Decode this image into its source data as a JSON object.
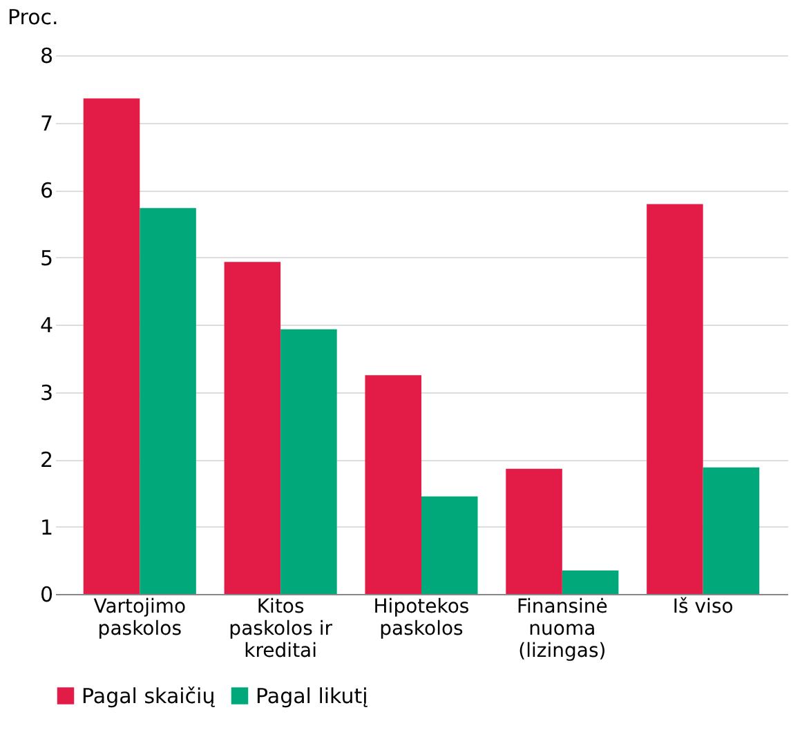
{
  "chart_data": {
    "type": "bar",
    "ylabel": "Proc.",
    "categories": [
      "Vartojimo\npaskolos",
      "Kitos\npaskolos ir\nkreditai",
      "Hipotekos\npaskolos",
      "Finansinė\nnuoma\n(lizingas)",
      "Iš viso"
    ],
    "series": [
      {
        "name": "Pagal skaičių",
        "color": "#e31c47",
        "values": [
          7.36,
          4.93,
          3.25,
          1.86,
          5.79
        ]
      },
      {
        "name": "Pagal likutį",
        "color": "#00a87a",
        "values": [
          5.73,
          3.93,
          1.45,
          0.35,
          1.88
        ]
      }
    ],
    "ylim": [
      0,
      8
    ],
    "yticks": [
      0,
      1,
      2,
      3,
      4,
      5,
      6,
      7,
      8
    ],
    "grid": "y",
    "legend": "bottom left"
  }
}
